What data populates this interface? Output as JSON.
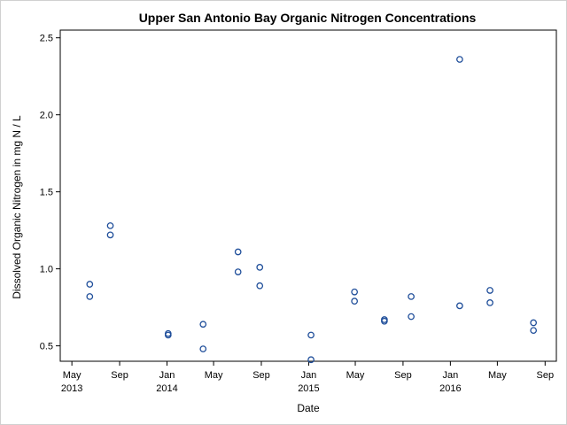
{
  "chart_data": {
    "type": "scatter",
    "title": "Upper San Antonio Bay Organic Nitrogen Concentrations",
    "xlabel": "Date",
    "ylabel": "Dissolved Organic Nitrogen in mg N / L",
    "xlim": [
      "2013-04-01",
      "2016-09-30"
    ],
    "ylim": [
      0.4,
      2.55
    ],
    "y_ticks": [
      "0.5",
      "1.0",
      "1.5",
      "2.0",
      "2.5"
    ],
    "x_ticks": [
      {
        "date": "2013-05-01",
        "line1": "May",
        "line2": "2013"
      },
      {
        "date": "2013-09-01",
        "line1": "Sep",
        "line2": ""
      },
      {
        "date": "2014-01-01",
        "line1": "Jan",
        "line2": "2014"
      },
      {
        "date": "2014-05-01",
        "line1": "May",
        "line2": ""
      },
      {
        "date": "2014-09-01",
        "line1": "Sep",
        "line2": ""
      },
      {
        "date": "2015-01-01",
        "line1": "Jan",
        "line2": "2015"
      },
      {
        "date": "2015-05-01",
        "line1": "May",
        "line2": ""
      },
      {
        "date": "2015-09-01",
        "line1": "Sep",
        "line2": ""
      },
      {
        "date": "2016-01-01",
        "line1": "Jan",
        "line2": "2016"
      },
      {
        "date": "2016-05-01",
        "line1": "May",
        "line2": ""
      },
      {
        "date": "2016-09-01",
        "line1": "Sep",
        "line2": ""
      }
    ],
    "grid": false,
    "legend": "none",
    "marker": "open-circle",
    "marker_color": "#1f4e9a",
    "series": [
      {
        "points": [
          {
            "x": "2013-06-16",
            "y": 0.9
          },
          {
            "x": "2013-06-16",
            "y": 0.82
          },
          {
            "x": "2013-08-08",
            "y": 1.28
          },
          {
            "x": "2013-08-08",
            "y": 1.22
          },
          {
            "x": "2014-01-04",
            "y": 0.58
          },
          {
            "x": "2014-01-04",
            "y": 0.57
          },
          {
            "x": "2014-04-04",
            "y": 0.64
          },
          {
            "x": "2014-04-04",
            "y": 0.48
          },
          {
            "x": "2014-07-03",
            "y": 1.11
          },
          {
            "x": "2014-07-03",
            "y": 0.98
          },
          {
            "x": "2014-08-28",
            "y": 1.01
          },
          {
            "x": "2014-08-28",
            "y": 0.89
          },
          {
            "x": "2015-01-07",
            "y": 0.57
          },
          {
            "x": "2015-01-07",
            "y": 0.41
          },
          {
            "x": "2015-04-29",
            "y": 0.85
          },
          {
            "x": "2015-04-29",
            "y": 0.79
          },
          {
            "x": "2015-07-15",
            "y": 0.67
          },
          {
            "x": "2015-07-15",
            "y": 0.66
          },
          {
            "x": "2015-09-22",
            "y": 0.82
          },
          {
            "x": "2015-09-22",
            "y": 0.69
          },
          {
            "x": "2016-01-25",
            "y": 2.36
          },
          {
            "x": "2016-01-25",
            "y": 0.76
          },
          {
            "x": "2016-04-12",
            "y": 0.86
          },
          {
            "x": "2016-04-12",
            "y": 0.78
          },
          {
            "x": "2016-08-02",
            "y": 0.65
          },
          {
            "x": "2016-08-02",
            "y": 0.6
          }
        ]
      }
    ]
  }
}
